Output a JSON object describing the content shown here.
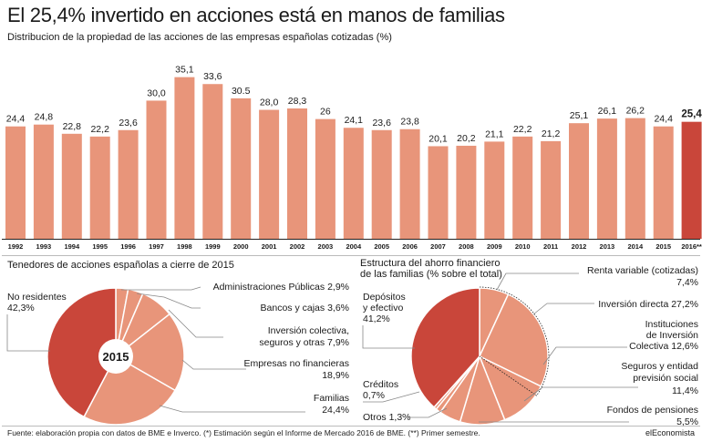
{
  "title": "El 25,4% invertido en acciones está en manos de familias",
  "subtitle": "Distribucion de la propiedad de las acciones de las empresas españolas cotizadas (%)",
  "colors": {
    "bar": "#e8957a",
    "highlight": "#c9463a",
    "pie_light": "#e8957a",
    "pie_dark": "#c9463a",
    "line": "#888888"
  },
  "chart_data": [
    {
      "type": "bar",
      "categories": [
        "1992",
        "1993",
        "1994",
        "1995",
        "1996",
        "1997",
        "1998",
        "1999",
        "2000",
        "2001",
        "2002",
        "2003",
        "2004",
        "2005",
        "2006",
        "2007",
        "2008",
        "2009",
        "2010",
        "2011",
        "2012",
        "2013",
        "2014",
        "2015",
        "2016**"
      ],
      "values": [
        24.4,
        24.8,
        22.8,
        22.2,
        23.6,
        30.0,
        35.1,
        33.6,
        30.5,
        28.0,
        28.3,
        26,
        24.1,
        23.6,
        23.8,
        20.1,
        20.2,
        21.1,
        22.2,
        21.2,
        25.1,
        26.1,
        26.2,
        24.4,
        25.4
      ],
      "value_labels": [
        "24,4",
        "24,8",
        "22,8",
        "22,2",
        "23,6",
        "30,0",
        "35,1",
        "33,6",
        "30.5",
        "28,0",
        "28,3",
        "26",
        "24,1",
        "23,6",
        "23,8",
        "20,1",
        "20,2",
        "21,1",
        "22,2",
        "21,2",
        "25,1",
        "26,1",
        "26,2",
        "24,4",
        "25,4"
      ],
      "highlight_index": 24,
      "ylim": [
        0,
        38
      ],
      "title": "",
      "xlabel": "",
      "ylabel": ""
    },
    {
      "type": "pie",
      "title": "Tenedores de acciones españolas a cierre de 2015",
      "center_label": "2015",
      "slices": [
        {
          "name": "No residentes",
          "value": 42.3,
          "label": "42,3%"
        },
        {
          "name": "Administraciones Públicas",
          "value": 2.9,
          "label": "2,9%"
        },
        {
          "name": "Bancos y cajas",
          "value": 3.6,
          "label": "3,6%"
        },
        {
          "name": "Inversión colectiva, seguros y otras",
          "value": 7.9,
          "label": "7,9%"
        },
        {
          "name": "Empresas no financieras",
          "value": 18.9,
          "label": "18,9%"
        },
        {
          "name": "Familias",
          "value": 24.4,
          "label": "24,4%"
        }
      ]
    },
    {
      "type": "pie",
      "title": "Estructura del ahorro financiero de las familias (% sobre el total)",
      "slices": [
        {
          "name": "Depósitos y efectivo",
          "value": 41.2,
          "label": "41,2%"
        },
        {
          "name": "Renta variable (cotizadas)",
          "value": 7.4,
          "label": "7,4%"
        },
        {
          "name": "Inversión directa",
          "value": 27.2,
          "label": "27,2%"
        },
        {
          "name": "Instituciones de Inversión Colectiva",
          "value": 12.6,
          "label": "12,6%"
        },
        {
          "name": "Seguros y entidad previsión social",
          "value": 11.4,
          "label": "11,4%"
        },
        {
          "name": "Fondos de pensiones",
          "value": 5.5,
          "label": "5,5%"
        },
        {
          "name": "Otros",
          "value": 1.3,
          "label": "1,3%"
        },
        {
          "name": "Créditos",
          "value": 0.7,
          "label": "0,7%"
        }
      ]
    }
  ],
  "pie1_labels": {
    "no_res": [
      "No residentes",
      "42,3%"
    ],
    "admin": "Administraciones Públicas 2,9%",
    "bancos": "Bancos y cajas 3,6%",
    "inversion": [
      "Inversión colectiva,",
      "seguros y otras 7,9%"
    ],
    "empresas": [
      "Empresas no financieras",
      "18,9%"
    ],
    "familias": [
      "Familias",
      "24,4%"
    ]
  },
  "pie2_labels": {
    "title": [
      "Estructura del ahorro financiero",
      "de las familias (% sobre el total)"
    ],
    "depositos": [
      "Depósitos",
      "y efectivo",
      "41,2%"
    ],
    "renta": [
      "Renta variable (cotizadas)",
      "7,4%"
    ],
    "inversion_directa": "Inversión directa 27,2%",
    "iic": [
      "Instituciones",
      "de Inversión",
      "Colectiva 12,6%"
    ],
    "seguros": [
      "Seguros y entidad",
      "previsión social",
      "11,4%"
    ],
    "fondos": [
      "Fondos de pensiones",
      "5,5%"
    ],
    "creditos": [
      "Créditos",
      "0,7%"
    ],
    "otros": "Otros 1,3%"
  },
  "footer": "Fuente: elaboración propia con datos de BME e Inverco. (*) Estimación según el Informe de Mercado 2016 de BME. (**) Primer semestre.",
  "brand": "elEconomista"
}
